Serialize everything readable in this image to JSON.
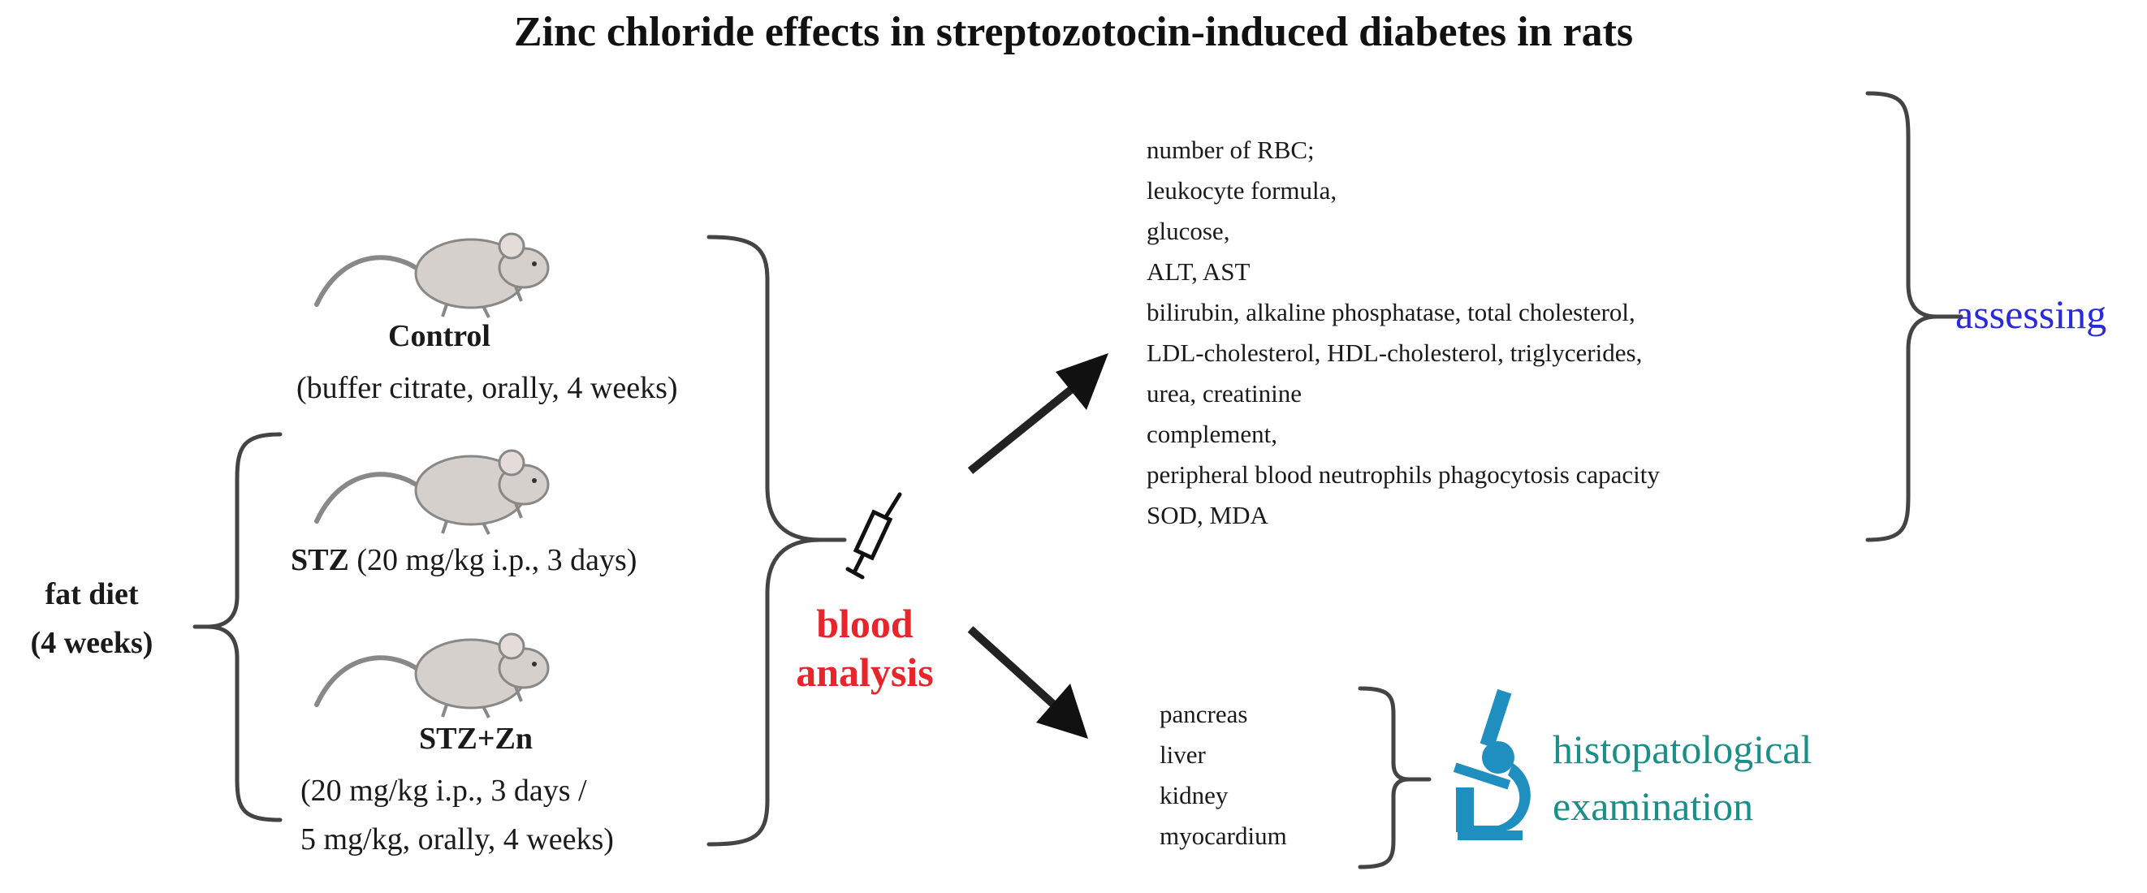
{
  "title": "Zinc chloride effects in streptozotocin-induced diabetes in rats",
  "groups": [
    {
      "name": "Control",
      "desc_lines": [
        "(buffer citrate, orally, 4 weeks)"
      ]
    },
    {
      "name": "STZ",
      "desc_lines": [
        "(20 mg/kg i.p., 3 days)"
      ]
    },
    {
      "name": "STZ+Zn",
      "desc_lines": [
        "(20 mg/kg i.p., 3 days /",
        "5 mg/kg, orally,  4 weeks)"
      ]
    }
  ],
  "fat_diet": [
    "fat diet",
    "(4 weeks)"
  ],
  "blood_analysis": [
    "blood",
    "analysis"
  ],
  "parameters": [
    "number of RBC;",
    "leukocyte formula,",
    "glucose,",
    "ALT, AST",
    "bilirubin, alkaline phosphatase, total cholesterol,",
    "LDL-cholesterol, HDL-cholesterol, triglycerides,",
    "urea, creatinine",
    "complement,",
    "peripheral blood neutrophils phagocytosis capacity",
    "SOD, MDA"
  ],
  "assessing": "assessing",
  "organs": [
    "pancreas",
    "liver",
    "kidney",
    "myocardium"
  ],
  "histo": [
    "histopatological",
    "examination"
  ],
  "colors": {
    "blood_text": "#e8252b",
    "assessing_text": "#2a2ad8",
    "histo_text": "#1a8f8a",
    "microscope": "#1f8fc0",
    "mouse_fill": "#d6d0cc"
  },
  "icons": [
    "rat-icon",
    "syringe-icon",
    "microscope-icon"
  ]
}
